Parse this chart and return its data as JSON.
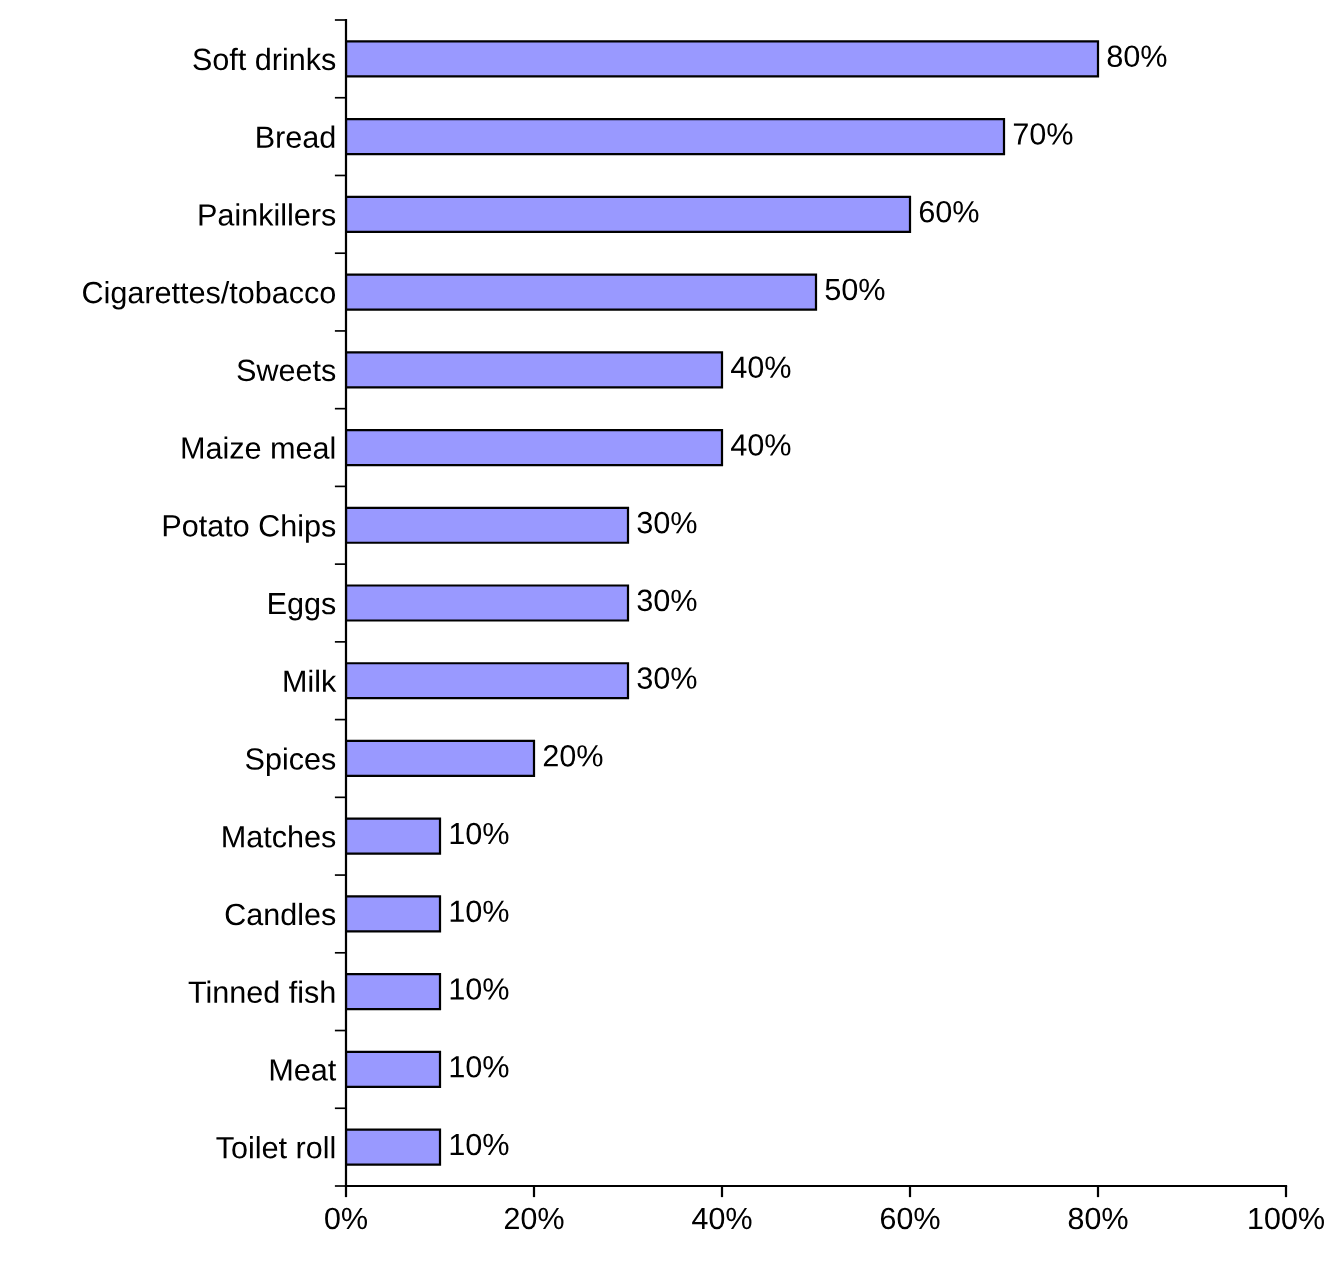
{
  "chart_data": {
    "type": "bar",
    "orientation": "horizontal",
    "categories": [
      "Soft drinks",
      "Bread",
      "Painkillers",
      "Cigarettes/tobacco",
      "Sweets",
      "Maize meal",
      "Potato Chips",
      "Eggs",
      "Milk",
      "Spices",
      "Matches",
      "Candles",
      "Tinned fish",
      "Meat",
      "Toilet roll"
    ],
    "values": [
      80,
      70,
      60,
      50,
      40,
      40,
      30,
      30,
      30,
      20,
      10,
      10,
      10,
      10,
      10
    ],
    "value_labels": [
      "80%",
      "70%",
      "60%",
      "50%",
      "40%",
      "40%",
      "30%",
      "30%",
      "30%",
      "20%",
      "10%",
      "10%",
      "10%",
      "10%",
      "10%"
    ],
    "color": "#9999ff",
    "xlim": [
      0,
      100
    ],
    "xticks": [
      {
        "value": 0,
        "label": "0%"
      },
      {
        "value": 20,
        "label": "20%"
      },
      {
        "value": 40,
        "label": "40%"
      },
      {
        "value": 60,
        "label": "60%"
      },
      {
        "value": 80,
        "label": "80%"
      },
      {
        "value": 100,
        "label": "100%"
      }
    ],
    "grid": false,
    "legend": false
  }
}
